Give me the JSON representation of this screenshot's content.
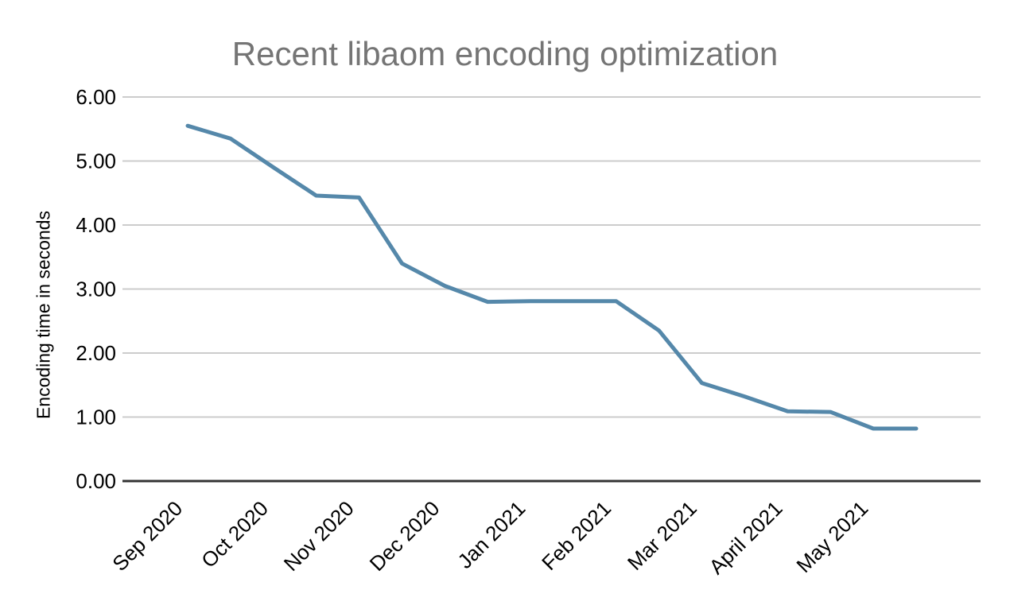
{
  "chart_data": {
    "type": "line",
    "title": "Recent libaom encoding optimization",
    "ylabel": "Encoding time in seconds",
    "xlabel": "",
    "x_tick_labels": [
      "Sep 2020",
      "Oct 2020",
      "Nov 2020",
      "Dec 2020",
      "Jan 2021",
      "Feb 2021",
      "Mar 2021",
      "April 2021",
      "May 2021"
    ],
    "points_per_label": 2,
    "x_months_from_sep2020": [
      0,
      0.5,
      1,
      1.5,
      2,
      2.5,
      3,
      3.5,
      4,
      4.5,
      5,
      5.5,
      6,
      6.5,
      7,
      7.5,
      8,
      8.5
    ],
    "values": [
      5.55,
      5.35,
      4.9,
      4.46,
      4.43,
      3.4,
      3.05,
      2.8,
      2.81,
      2.81,
      2.81,
      2.35,
      1.53,
      1.32,
      1.09,
      1.08,
      0.82,
      0.82
    ],
    "ytick_labels": [
      "0.00",
      "1.00",
      "2.00",
      "3.00",
      "4.00",
      "5.00",
      "6.00"
    ],
    "ylim": [
      0,
      6
    ],
    "grid": true,
    "legend": "none",
    "colors": {
      "line": "#5588AA",
      "grid": "#CCCCCC",
      "axis": "#333333",
      "title": "#757575",
      "tick_text": "#000000",
      "background": "#FFFFFF"
    }
  }
}
